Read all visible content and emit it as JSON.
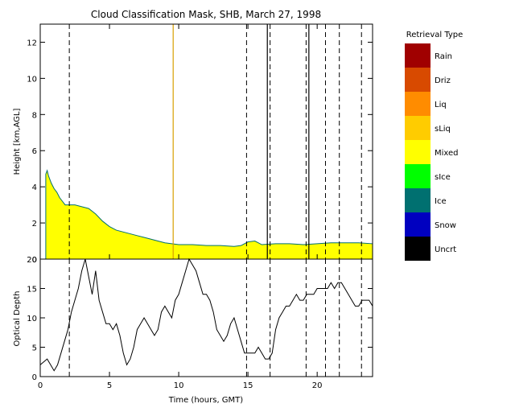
{
  "chart_data": [
    {
      "type": "area",
      "title": "Cloud Classification Mask, SHB, March 27, 1998",
      "ylabel": "Height [km,AGL]",
      "xlim": [
        0,
        24
      ],
      "ylim": [
        0,
        13
      ],
      "xticks": [
        0,
        5,
        10,
        15,
        20
      ],
      "yticks": [
        0,
        2,
        4,
        6,
        8,
        10,
        12
      ],
      "legend": {
        "title": "Retrieval Type",
        "placement": "right",
        "entries": [
          {
            "label": "Rain",
            "color": "#a00000"
          },
          {
            "label": "Driz",
            "color": "#d84a00"
          },
          {
            "label": "Liq",
            "color": "#ff8c00"
          },
          {
            "label": "sLiq",
            "color": "#ffcc00"
          },
          {
            "label": "Mixed",
            "color": "#ffff00"
          },
          {
            "label": "sIce",
            "color": "#00ff00"
          },
          {
            "label": "Ice",
            "color": "#007070"
          },
          {
            "label": "Snow",
            "color": "#0000c0"
          },
          {
            "label": "Uncrt",
            "color": "#000000"
          }
        ]
      },
      "series": [
        {
          "category": "Mixed",
          "x": [
            0.4,
            0.5,
            0.6,
            0.8,
            1.0,
            1.2,
            1.4,
            1.6,
            1.8,
            2.0,
            2.5,
            3.0,
            3.5,
            4.0,
            4.5,
            5.0,
            5.5,
            6.0,
            6.5,
            7.0,
            7.5,
            8.0,
            8.5,
            9.0,
            9.5,
            10.0,
            11.0,
            12.0,
            13.0,
            14.0,
            14.5,
            15.0,
            15.5,
            16.0,
            17.0,
            18.0,
            19.0,
            20.0,
            21.0,
            22.0,
            23.0,
            24.0
          ],
          "cloud_top": [
            4.7,
            4.9,
            4.6,
            4.2,
            3.9,
            3.7,
            3.4,
            3.2,
            3.0,
            3.0,
            3.0,
            2.9,
            2.8,
            2.5,
            2.1,
            1.8,
            1.6,
            1.5,
            1.4,
            1.3,
            1.2,
            1.1,
            1.0,
            0.9,
            0.85,
            0.8,
            0.8,
            0.75,
            0.75,
            0.7,
            0.75,
            0.95,
            1.0,
            0.8,
            0.85,
            0.85,
            0.8,
            0.85,
            0.9,
            0.9,
            0.9,
            0.85
          ],
          "cloud_base": 0
        }
      ],
      "vertical_lines": [
        9.6,
        16.4,
        19.4
      ]
    },
    {
      "type": "line",
      "xlabel": "Time (hours, GMT)",
      "ylabel": "Optical Depth",
      "xlim": [
        0,
        24
      ],
      "ylim": [
        0,
        20
      ],
      "xticks": [
        0,
        5,
        10,
        15,
        20
      ],
      "yticks": [
        0,
        5,
        10,
        15,
        20
      ],
      "x": [
        0.0,
        0.25,
        0.5,
        0.75,
        1.0,
        1.25,
        1.5,
        1.75,
        2.0,
        2.25,
        2.5,
        2.75,
        3.0,
        3.25,
        3.5,
        3.75,
        4.0,
        4.25,
        4.5,
        4.75,
        5.0,
        5.25,
        5.5,
        5.75,
        6.0,
        6.25,
        6.5,
        6.75,
        7.0,
        7.25,
        7.5,
        7.75,
        8.0,
        8.25,
        8.5,
        8.75,
        9.0,
        9.25,
        9.5,
        9.75,
        10.0,
        10.25,
        10.5,
        10.75,
        11.0,
        11.25,
        11.5,
        11.75,
        12.0,
        12.25,
        12.5,
        12.75,
        13.0,
        13.25,
        13.5,
        13.75,
        14.0,
        14.25,
        14.5,
        14.75,
        15.0,
        15.25,
        15.5,
        15.75,
        16.0,
        16.25,
        16.5,
        16.75,
        17.0,
        17.25,
        17.5,
        17.75,
        18.0,
        18.25,
        18.5,
        18.75,
        19.0,
        19.25,
        19.5,
        19.75,
        20.0,
        20.25,
        20.5,
        20.75,
        21.0,
        21.25,
        21.5,
        21.75,
        22.0,
        22.25,
        22.5,
        22.75,
        23.0,
        23.25,
        23.5,
        23.75,
        24.0
      ],
      "y": [
        2,
        2.5,
        3,
        2,
        1,
        2,
        4,
        6,
        8,
        11,
        13,
        15,
        18,
        20,
        17,
        14,
        18,
        13,
        11,
        9,
        9,
        8,
        9,
        7,
        4,
        2,
        3,
        5,
        8,
        9,
        10,
        9,
        8,
        7,
        8,
        11,
        12,
        11,
        10,
        13,
        14,
        16,
        18,
        20,
        19,
        18,
        16,
        14,
        14,
        13,
        11,
        8,
        7,
        6,
        7,
        9,
        10,
        8,
        6,
        4,
        4,
        4,
        4,
        5,
        4,
        3,
        3,
        4,
        8,
        10,
        11,
        12,
        12,
        13,
        14,
        13,
        13,
        14,
        14,
        14,
        15,
        15,
        15,
        15,
        16,
        15,
        16,
        16,
        15,
        14,
        13,
        12,
        12,
        13,
        13,
        13,
        12
      ],
      "vertical_dashed_lines": [
        2.1,
        14.9,
        16.6,
        19.2,
        20.6,
        21.6,
        23.2
      ]
    }
  ]
}
